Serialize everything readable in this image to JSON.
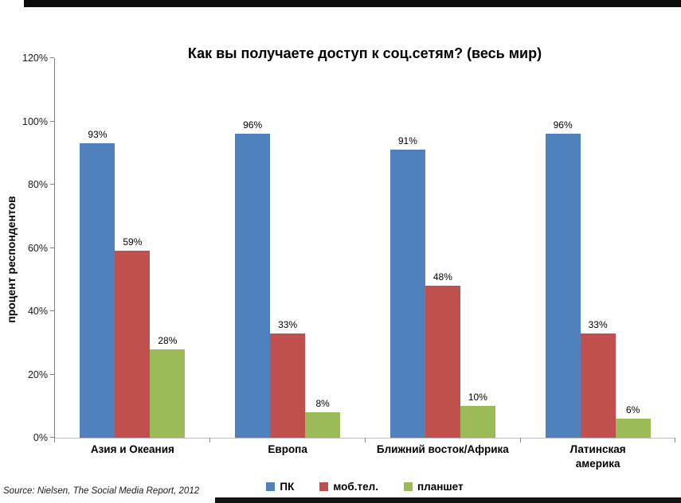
{
  "page": {
    "background": "#ffffff"
  },
  "decorations": {
    "top_strip_color": "#0b0b0b",
    "bottom_strip_color": "#141414"
  },
  "source_note": "Source: Nielsen, The Social Media Report, 2012",
  "chart_data": {
    "type": "bar",
    "title": "Как вы получаете доступ к соц.сетям? (весь мир)",
    "xlabel": "",
    "ylabel": "процент респондентов",
    "ylim": [
      0,
      120
    ],
    "ytick_step": 20,
    "yticks": [
      "0%",
      "20%",
      "40%",
      "60%",
      "80%",
      "100%",
      "120%"
    ],
    "grid": false,
    "legend_position": "bottom",
    "data_label_suffix": "%",
    "categories": [
      "Азия и Океания",
      "Европа",
      "Ближний восток/Африка",
      "Латинская\nамерика"
    ],
    "series": [
      {
        "name": "ПК",
        "color": "#4F81BD",
        "values": [
          93,
          96,
          91,
          96
        ]
      },
      {
        "name": "моб.тел.",
        "color": "#C0504D",
        "values": [
          59,
          33,
          48,
          33
        ]
      },
      {
        "name": "планшет",
        "color": "#9BBB59",
        "values": [
          28,
          8,
          10,
          6
        ]
      }
    ]
  }
}
